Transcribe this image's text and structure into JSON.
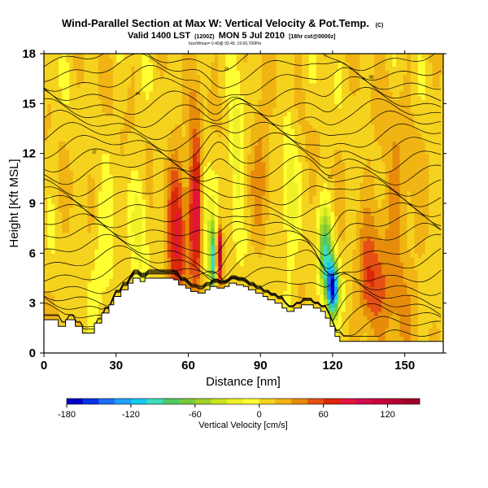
{
  "header": {
    "title": "Wind-Parallel Section at Max W: Vertical Velocity & Pot.Temp.",
    "title_mark": "(C)",
    "subtitle_a": "Valid 1400 LST",
    "subtitle_b": "(1200Z)",
    "subtitle_c": "MON 5 Jul 2010",
    "subtitle_d": "[18hr cst@0000z]",
    "info": "box/Wmax= 0.40@ 93 49, 19 69,700Pm"
  },
  "chart_data": {
    "type": "heatmap",
    "xlabel": "Distance [nm]",
    "ylabel": "Height [Kft MSL]",
    "xlim": [
      0,
      166
    ],
    "ylim": [
      0,
      18
    ],
    "x_ticks": [
      "0",
      "30",
      "60",
      "90",
      "120",
      "150"
    ],
    "x_tick_values": [
      0,
      30,
      60,
      90,
      120,
      150
    ],
    "y_ticks": [
      "0",
      "3",
      "6",
      "9",
      "12",
      "15",
      "18"
    ],
    "y_tick_values": [
      0,
      3,
      6,
      9,
      12,
      15,
      18
    ],
    "colorbar": {
      "label": "Vertical Velocity [cm/s]",
      "tick_labels": [
        "-180",
        "-120",
        "-60",
        "0",
        "60",
        "120"
      ],
      "tick_values": [
        -180,
        -120,
        -60,
        0,
        60,
        120
      ],
      "range": [
        -180,
        150
      ],
      "step": 15,
      "colors": [
        "#0000c8",
        "#0a32e6",
        "#1e6ef5",
        "#1ea0ff",
        "#14c8f0",
        "#3cdcbe",
        "#50c864",
        "#78c83c",
        "#a0d228",
        "#c8e61e",
        "#f0f028",
        "#ffff32",
        "#f5d21e",
        "#f0b414",
        "#e68c0a",
        "#e65014",
        "#dc280a",
        "#e6143c",
        "#d20a50",
        "#c8003c",
        "#b40032",
        "#a00028"
      ]
    },
    "terrain": {
      "x": [
        0,
        3,
        6,
        9,
        13,
        16,
        19,
        21,
        24,
        27,
        29,
        32,
        35,
        37,
        40,
        42,
        45,
        48,
        51,
        54,
        56,
        59,
        61,
        64,
        67,
        69,
        72,
        75,
        77,
        80,
        83,
        85,
        88,
        91,
        93,
        96,
        99,
        101,
        104,
        107,
        109,
        112,
        115,
        117,
        119,
        121,
        123,
        125,
        128,
        166
      ],
      "y": [
        2.0,
        2.0,
        1.6,
        2.0,
        1.6,
        1.2,
        1.2,
        1.8,
        2.4,
        2.9,
        3.4,
        3.8,
        4.2,
        4.5,
        4.3,
        4.5,
        4.5,
        4.5,
        4.5,
        4.4,
        4.1,
        3.9,
        3.7,
        3.6,
        3.8,
        4.0,
        3.9,
        4.0,
        4.2,
        4.1,
        4.0,
        3.8,
        3.6,
        3.4,
        3.2,
        3.0,
        2.7,
        2.5,
        2.7,
        2.9,
        2.9,
        2.7,
        2.5,
        2.1,
        1.6,
        1.0,
        0.7,
        0.7,
        0.7,
        0.7
      ]
    },
    "velocity_features": [
      {
        "x": 55,
        "y": 6,
        "value": 60,
        "sx": 4,
        "sy": 6
      },
      {
        "x": 63,
        "y": 9,
        "value": 80,
        "sx": 3,
        "sy": 5
      },
      {
        "x": 73,
        "y": 6,
        "value": 130,
        "sx": 1.2,
        "sy": 1.5
      },
      {
        "x": 70,
        "y": 5.5,
        "value": -110,
        "sx": 1.4,
        "sy": 2.5
      },
      {
        "x": 67,
        "y": 8,
        "value": -40,
        "sx": 2,
        "sy": 4
      },
      {
        "x": 80,
        "y": 12,
        "value": -40,
        "sx": 3,
        "sy": 4
      },
      {
        "x": 120,
        "y": 3.8,
        "value": -170,
        "sx": 2.5,
        "sy": 1.6
      },
      {
        "x": 117,
        "y": 6,
        "value": -90,
        "sx": 3,
        "sy": 2.5
      },
      {
        "x": 102,
        "y": 9,
        "value": -30,
        "sx": 3,
        "sy": 6
      },
      {
        "x": 40,
        "y": 7,
        "value": -30,
        "sx": 3,
        "sy": 4
      },
      {
        "x": 25,
        "y": 6,
        "value": -25,
        "sx": 6,
        "sy": 3
      },
      {
        "x": 90,
        "y": 12,
        "value": 25,
        "sx": 4,
        "sy": 4
      },
      {
        "x": 145,
        "y": 6,
        "value": 25,
        "sx": 10,
        "sy": 8
      },
      {
        "x": 135,
        "y": 4,
        "value": 40,
        "sx": 5,
        "sy": 3
      }
    ],
    "theta_contours": {
      "levels": [
        300,
        302,
        304,
        306,
        308,
        310,
        312,
        314,
        316,
        318,
        320,
        322,
        324,
        326,
        328,
        330,
        332,
        334,
        336,
        338,
        340,
        342,
        344,
        346,
        348,
        350
      ]
    },
    "contour_labels": [
      "32",
      "34",
      "36",
      "38",
      "42"
    ]
  }
}
